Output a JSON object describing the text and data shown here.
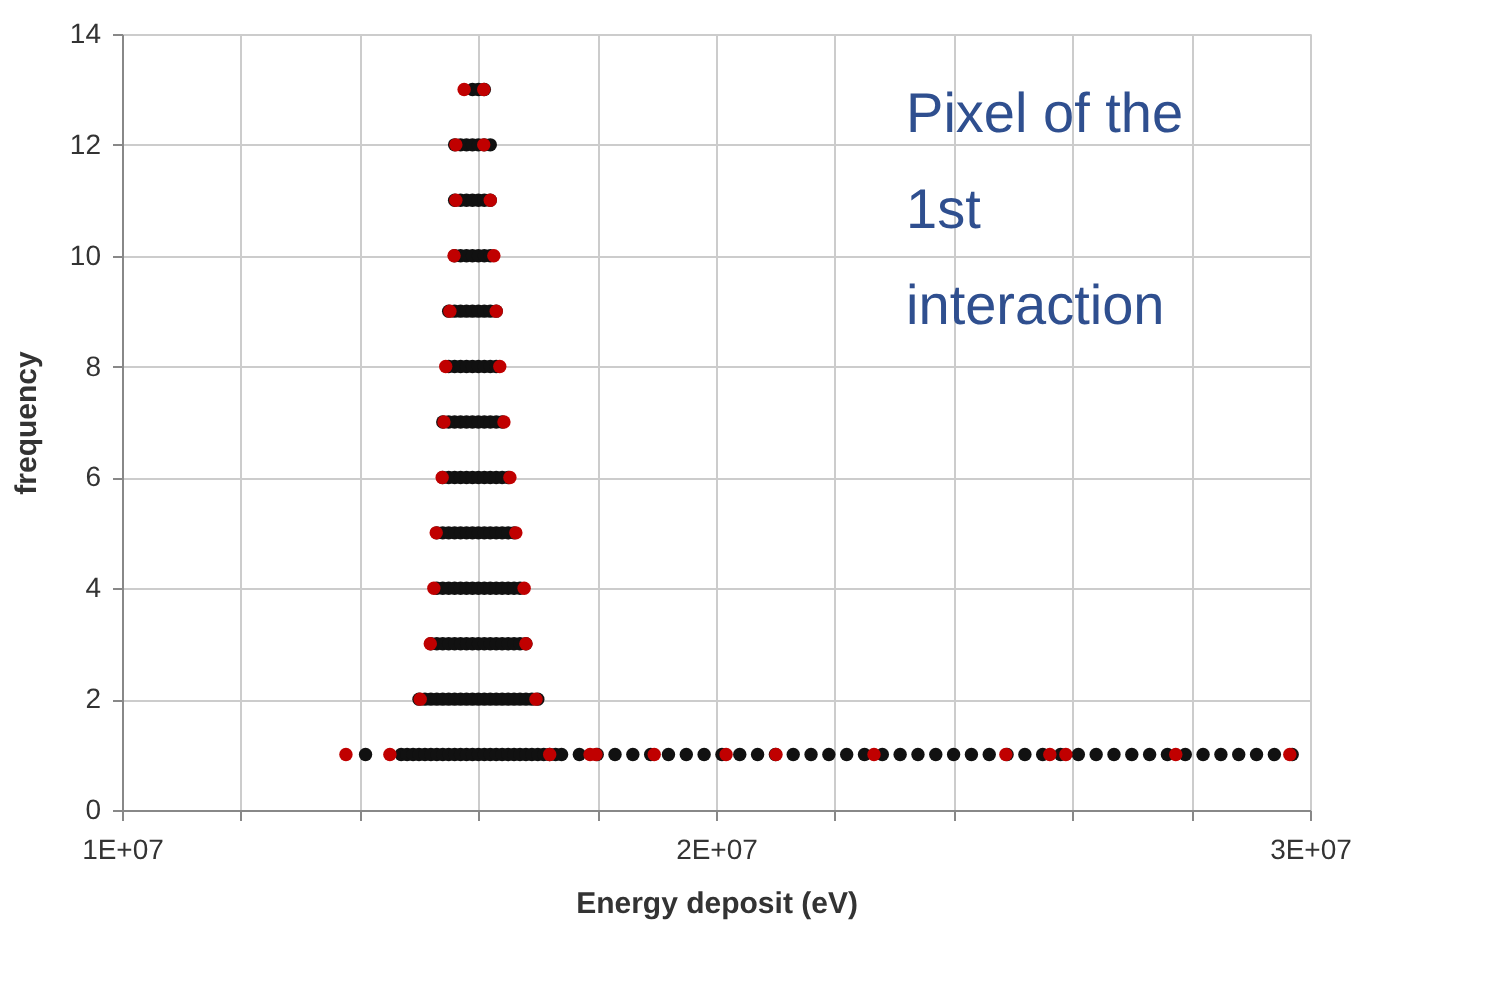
{
  "chart_data": {
    "type": "scatter",
    "xlabel": "Energy deposit (eV)",
    "ylabel": "frequency",
    "annotations": [
      "Pixel of the\n1st\ninteraction"
    ],
    "xlim": [
      10000000,
      30000000
    ],
    "xticks": [
      {
        "value": 10000000,
        "label": "1E+07"
      },
      {
        "value": 12000000,
        "label": null
      },
      {
        "value": 14000000,
        "label": null
      },
      {
        "value": 16000000,
        "label": null
      },
      {
        "value": 18000000,
        "label": null
      },
      {
        "value": 20000000,
        "label": "2E+07"
      },
      {
        "value": 22000000,
        "label": null
      },
      {
        "value": 24000000,
        "label": null
      },
      {
        "value": 26000000,
        "label": null
      },
      {
        "value": 28000000,
        "label": null
      },
      {
        "value": 30000000,
        "label": "3E+07"
      }
    ],
    "ylim": [
      0,
      14
    ],
    "yticks": [
      0,
      2,
      4,
      6,
      8,
      10,
      12,
      14
    ],
    "grid": true,
    "marker": "circle",
    "legend": false,
    "series": [
      {
        "color": "#111111",
        "x": [
          14100000,
          14700000,
          14800000,
          14900000,
          15000000,
          15100000,
          15200000,
          15300000,
          15400000,
          15500000,
          15600000,
          15700000,
          15800000,
          15900000,
          16000000,
          16100000,
          16200000,
          16300000,
          16400000,
          16500000,
          16600000,
          16700000,
          16800000,
          16900000,
          17000000,
          17100000,
          17200000,
          17300000,
          17400000,
          17700000,
          18000000,
          18300000,
          18600000,
          18900000,
          19200000,
          19500000,
          19800000,
          20100000,
          20400000,
          20700000,
          21000000,
          21300000,
          21600000,
          21900000,
          22200000,
          22500000,
          22800000,
          23100000,
          23400000,
          23700000,
          24000000,
          24300000,
          24600000,
          24900000,
          25200000,
          25500000,
          25800000,
          26100000,
          26400000,
          26700000,
          27000000,
          27300000,
          27600000,
          27900000,
          28200000,
          28500000,
          28800000,
          29100000,
          29400000,
          29700000,
          15000000,
          15100000,
          15200000,
          15300000,
          15400000,
          15500000,
          15600000,
          15700000,
          15800000,
          15900000,
          16000000,
          16100000,
          16200000,
          16300000,
          16400000,
          16500000,
          16600000,
          16700000,
          16800000,
          16900000,
          17000000,
          15200000,
          15300000,
          15400000,
          15500000,
          15600000,
          15700000,
          15800000,
          15900000,
          16000000,
          16100000,
          16200000,
          16300000,
          16400000,
          16500000,
          16600000,
          16700000,
          16800000,
          15300000,
          15400000,
          15500000,
          15600000,
          15700000,
          15800000,
          15900000,
          16000000,
          16100000,
          16200000,
          16300000,
          16400000,
          16500000,
          16600000,
          16700000,
          15300000,
          15400000,
          15500000,
          15600000,
          15700000,
          15800000,
          15900000,
          16000000,
          16100000,
          16200000,
          16300000,
          16400000,
          16500000,
          16600000,
          15400000,
          15500000,
          15600000,
          15700000,
          15800000,
          15900000,
          16000000,
          16100000,
          16200000,
          16300000,
          16400000,
          16500000,
          15400000,
          15500000,
          15600000,
          15700000,
          15800000,
          15900000,
          16000000,
          16100000,
          16200000,
          16300000,
          16400000,
          15500000,
          15600000,
          15700000,
          15800000,
          15900000,
          16000000,
          16100000,
          16200000,
          16300000,
          15500000,
          15600000,
          15700000,
          15800000,
          15900000,
          16000000,
          16100000,
          16200000,
          16300000,
          15600000,
          15700000,
          15800000,
          15900000,
          16000000,
          16100000,
          16200000,
          15600000,
          15700000,
          15800000,
          15900000,
          16000000,
          16100000,
          16200000,
          15600000,
          15700000,
          15800000,
          15900000,
          16000000,
          16100000,
          16200000,
          15900000,
          16000000,
          16100000
        ],
        "values": [
          1,
          1,
          1,
          1,
          1,
          1,
          1,
          1,
          1,
          1,
          1,
          1,
          1,
          1,
          1,
          1,
          1,
          1,
          1,
          1,
          1,
          1,
          1,
          1,
          1,
          1,
          1,
          1,
          1,
          1,
          1,
          1,
          1,
          1,
          1,
          1,
          1,
          1,
          1,
          1,
          1,
          1,
          1,
          1,
          1,
          1,
          1,
          1,
          1,
          1,
          1,
          1,
          1,
          1,
          1,
          1,
          1,
          1,
          1,
          1,
          1,
          1,
          1,
          1,
          1,
          1,
          1,
          1,
          1,
          1,
          2,
          2,
          2,
          2,
          2,
          2,
          2,
          2,
          2,
          2,
          2,
          2,
          2,
          2,
          2,
          2,
          2,
          2,
          2,
          2,
          2,
          3,
          3,
          3,
          3,
          3,
          3,
          3,
          3,
          3,
          3,
          3,
          3,
          3,
          3,
          3,
          3,
          3,
          4,
          4,
          4,
          4,
          4,
          4,
          4,
          4,
          4,
          4,
          4,
          4,
          4,
          4,
          4,
          5,
          5,
          5,
          5,
          5,
          5,
          5,
          5,
          5,
          5,
          5,
          5,
          5,
          5,
          6,
          6,
          6,
          6,
          6,
          6,
          6,
          6,
          6,
          6,
          6,
          6,
          7,
          7,
          7,
          7,
          7,
          7,
          7,
          7,
          7,
          7,
          7,
          8,
          8,
          8,
          8,
          8,
          8,
          8,
          8,
          8,
          9,
          9,
          9,
          9,
          9,
          9,
          9,
          9,
          9,
          10,
          10,
          10,
          10,
          10,
          10,
          10,
          11,
          11,
          11,
          11,
          11,
          11,
          11,
          12,
          12,
          12,
          12,
          12,
          12,
          12,
          13,
          13,
          13
        ]
      },
      {
        "color": "#c00000",
        "x": [
          13770000,
          14510000,
          17200000,
          17880000,
          17980000,
          18960000,
          20170000,
          21010000,
          22660000,
          24880000,
          25620000,
          25890000,
          27740000,
          29660000,
          15020000,
          16970000,
          15190000,
          16800000,
          15250000,
          16770000,
          15290000,
          16630000,
          15390000,
          16530000,
          15420000,
          16430000,
          15450000,
          16360000,
          15520000,
          16300000,
          15590000,
          16260000,
          15620000,
          16200000,
          15620000,
          16090000,
          15760000,
          16090000
        ],
        "values": [
          1,
          1,
          1,
          1,
          1,
          1,
          1,
          1,
          1,
          1,
          1,
          1,
          1,
          1,
          2,
          2,
          3,
          3,
          4,
          4,
          5,
          5,
          6,
          6,
          7,
          7,
          8,
          8,
          9,
          9,
          10,
          10,
          11,
          11,
          12,
          12,
          13,
          13
        ]
      }
    ]
  }
}
